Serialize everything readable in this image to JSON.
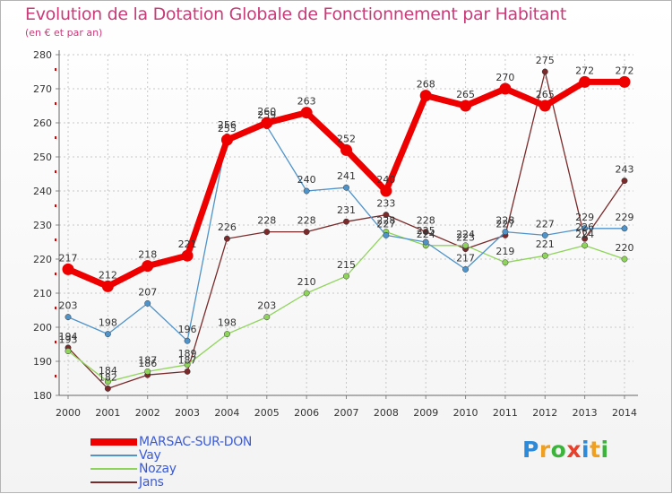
{
  "chart_data": {
    "type": "line",
    "title": "Evolution de la Dotation Globale de Fonctionnement par Habitant",
    "subtitle": "(en € et par an)",
    "xlabel": "",
    "ylabel": "",
    "x": [
      "2000",
      "2001",
      "2002",
      "2003",
      "2004",
      "2005",
      "2006",
      "2007",
      "2008",
      "2009",
      "2010",
      "2011",
      "2012",
      "2013",
      "2014"
    ],
    "ylim": [
      180,
      280
    ],
    "yticks": [
      180,
      190,
      200,
      210,
      220,
      230,
      240,
      250,
      260,
      270,
      280
    ],
    "series": [
      {
        "name": "MARSAC-SUR-DON",
        "color": "#ee0000",
        "values": [
          217,
          212,
          218,
          221,
          255,
          260,
          263,
          252,
          240,
          268,
          265,
          270,
          265,
          272,
          272
        ]
      },
      {
        "name": "Vay",
        "color": "#4f93c9",
        "values": [
          203,
          198,
          207,
          196,
          256,
          259,
          240,
          241,
          227,
          225,
          217,
          228,
          227,
          229,
          229
        ]
      },
      {
        "name": "Nozay",
        "color": "#8fd45a",
        "values": [
          193,
          184,
          187,
          189,
          198,
          203,
          210,
          215,
          228,
          224,
          224,
          219,
          221,
          224,
          220
        ]
      },
      {
        "name": "Jans",
        "color": "#7a2a2a",
        "values": [
          194,
          182,
          186,
          187,
          226,
          228,
          228,
          231,
          233,
          228,
          223,
          227,
          275,
          226,
          243
        ]
      }
    ],
    "legend": "bottom-left"
  },
  "brand": {
    "letters": [
      "P",
      "r",
      "o",
      "x",
      "i",
      "t",
      "i"
    ],
    "colors": [
      "#2d8ad8",
      "#f0a020",
      "#3ab53a",
      "#e8402a",
      "#2d8ad8",
      "#f0a020",
      "#3ab53a"
    ]
  }
}
